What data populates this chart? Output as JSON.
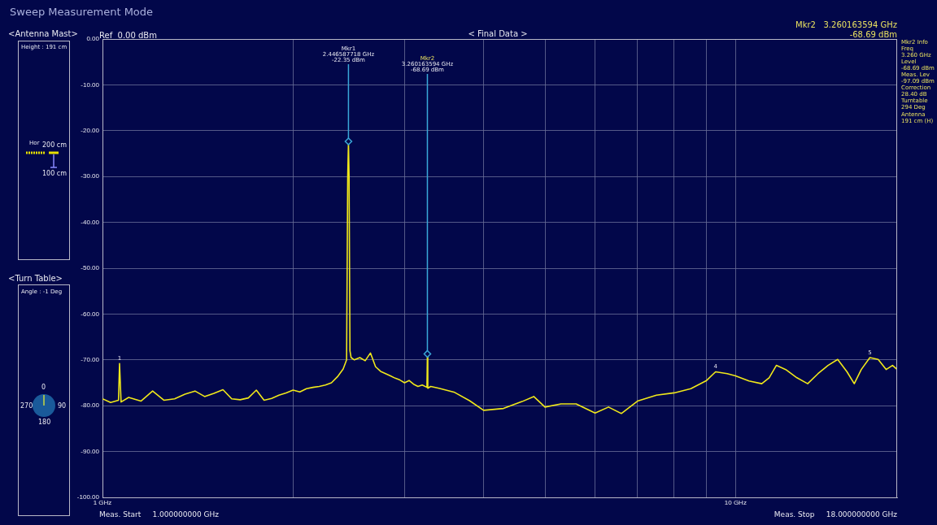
{
  "chart_data": {
    "type": "line",
    "title": "Sweep Measurement Mode",
    "xlabel": null,
    "log": "x",
    "grid": true,
    "legend": false,
    "marker": "none",
    "line_style": "solid",
    "xlim": [
      1,
      18
    ],
    "xticks": [
      {
        "value": 1,
        "label": "1 GHz"
      },
      {
        "value": 2,
        "label": null
      },
      {
        "value": 3,
        "label": null
      },
      {
        "value": 4,
        "label": null
      },
      {
        "value": 5,
        "label": null
      },
      {
        "value": 6,
        "label": null
      },
      {
        "value": 7,
        "label": null
      },
      {
        "value": 8,
        "label": null
      },
      {
        "value": 9,
        "label": null
      },
      {
        "value": 10,
        "label": "10 GHz"
      }
    ],
    "ylim": [
      -100,
      0
    ],
    "yticks": [
      {
        "value": 0,
        "label": "0.00"
      },
      {
        "value": -10,
        "label": "-10.00"
      },
      {
        "value": -20,
        "label": "-20.00"
      },
      {
        "value": -30,
        "label": "-30.00"
      },
      {
        "value": -40,
        "label": "-40.00"
      },
      {
        "value": -50,
        "label": "-50.00"
      },
      {
        "value": -60,
        "label": "-60.00"
      },
      {
        "value": -70,
        "label": "-70.00"
      },
      {
        "value": -80,
        "label": "-80.00"
      },
      {
        "value": -90,
        "label": "-90.00"
      },
      {
        "value": -100,
        "label": "-100.00"
      }
    ],
    "series": [
      {
        "color": "#f0e81a",
        "x": [
          1.0,
          1.03,
          1.06,
          1.064,
          1.07,
          1.1,
          1.15,
          1.2,
          1.25,
          1.3,
          1.35,
          1.4,
          1.45,
          1.5,
          1.55,
          1.6,
          1.65,
          1.7,
          1.75,
          1.8,
          1.85,
          1.9,
          1.95,
          2.0,
          2.05,
          2.1,
          2.15,
          2.2,
          2.25,
          2.3,
          2.35,
          2.4,
          2.43,
          2.44,
          2.4466,
          2.452,
          2.46,
          2.47,
          2.5,
          2.55,
          2.6,
          2.65,
          2.7,
          2.75,
          2.8,
          2.85,
          2.9,
          2.95,
          3.0,
          3.05,
          3.1,
          3.15,
          3.2,
          3.255,
          3.2602,
          3.265,
          3.3,
          3.4,
          3.6,
          3.8,
          4.0,
          4.3,
          4.6,
          4.8,
          5.0,
          5.3,
          5.6,
          6.0,
          6.3,
          6.6,
          7.0,
          7.5,
          8.0,
          8.5,
          9.0,
          9.3,
          9.7,
          10.0,
          10.5,
          11.0,
          11.3,
          11.6,
          12.0,
          12.5,
          13.0,
          13.5,
          14.0,
          14.5,
          15.0,
          15.4,
          15.8,
          16.3,
          16.8,
          17.3,
          17.7,
          18.0
        ],
        "values": [
          -78.5,
          -79.3,
          -78.8,
          -70.8,
          -79.2,
          -78.2,
          -79.0,
          -76.8,
          -78.8,
          -78.5,
          -77.5,
          -76.8,
          -78.0,
          -77.3,
          -76.5,
          -78.5,
          -78.7,
          -78.3,
          -76.6,
          -78.8,
          -78.4,
          -77.7,
          -77.2,
          -76.6,
          -77.0,
          -76.3,
          -76.0,
          -75.8,
          -75.5,
          -75.0,
          -73.7,
          -72.0,
          -70.0,
          -30.0,
          -22.35,
          -30.0,
          -68.0,
          -69.5,
          -70.0,
          -69.5,
          -70.2,
          -68.5,
          -71.5,
          -72.5,
          -73.0,
          -73.5,
          -74.0,
          -74.4,
          -75.0,
          -74.5,
          -75.3,
          -75.8,
          -75.5,
          -76.0,
          -68.69,
          -76.2,
          -75.8,
          -76.2,
          -77.1,
          -78.9,
          -81.0,
          -80.6,
          -79.1,
          -78.0,
          -80.3,
          -79.6,
          -79.6,
          -81.6,
          -80.3,
          -81.7,
          -79.0,
          -77.7,
          -77.2,
          -76.3,
          -74.5,
          -72.6,
          -73.0,
          -73.5,
          -74.6,
          -75.2,
          -73.9,
          -71.2,
          -72.1,
          -73.9,
          -75.2,
          -73.0,
          -71.2,
          -69.9,
          -72.6,
          -75.2,
          -72.1,
          -69.5,
          -69.9,
          -72.1,
          -71.2,
          -72.1
        ]
      }
    ],
    "annotations": [
      {
        "text": "Mkr1\n2.446587718 GHz\n-22.35 dBm",
        "x": 2.446587718,
        "y": -22.35
      },
      {
        "text": "Mkr2\n3.260163594 GHz\n-68.69 dBm",
        "x": 3.260163594,
        "y": -68.69
      },
      {
        "text": "1",
        "x": 1.064,
        "y": -70.8
      },
      {
        "text": "4",
        "x": 9.3,
        "y": -72.6
      },
      {
        "text": "5",
        "x": 16.3,
        "y": -69.5
      },
      "Ref  0.00 dBm",
      "< Final Data >",
      "Mkr2   3.260163594 GHz\n-68.69 dBm",
      "Meas. Start     1.000000000 GHz",
      "Meas. Stop     18.000000000 GHz",
      "<Antenna Mast>",
      "Height : 191 cm",
      "Hor",
      "200 cm",
      "100 cm",
      "<Turn Table>",
      "Angle : -1 Deg",
      "0",
      "90",
      "180",
      "270",
      "Mkr2 Info\nFreq\n3.260 GHz\nLevel\n-68.69 dBm\nMeas. Lev\n-97.09 dBm\nCorrection\n28.40 dB\nTurntable\n294 Deg\nAntenna\n191 cm (H)"
    ]
  }
}
